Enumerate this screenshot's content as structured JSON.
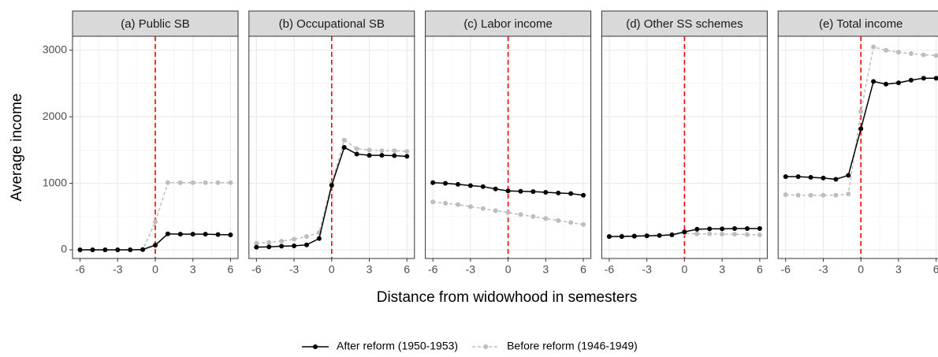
{
  "chart_data": {
    "type": "line",
    "x_label": "Distance from widowhood in semesters",
    "y_label": "Average income",
    "x": [
      -6,
      -5,
      -4,
      -3,
      -2,
      -1,
      0,
      1,
      2,
      3,
      4,
      5,
      6
    ],
    "xlim": [
      -6.6,
      6.6
    ],
    "xticks": [
      -6,
      -3,
      0,
      3,
      6
    ],
    "xminor": [
      -4.5,
      -1.5,
      1.5,
      4.5
    ],
    "ylim": [
      -130,
      3210
    ],
    "yticks": [
      0,
      1000,
      2000,
      3000
    ],
    "yminor": [
      500,
      1500,
      2500
    ],
    "grid": true,
    "reference_x": 0,
    "reference_color": "#ff0000",
    "legend": "bottom",
    "series": [
      {
        "name": "After reform (1950-1953)",
        "color": "#000000",
        "dashed": false
      },
      {
        "name": "Before reform (1946-1949)",
        "color": "#bdbdbd",
        "dashed": true
      }
    ],
    "panels": [
      {
        "title": "(a) Public SB",
        "values": [
          [
            0,
            0,
            0,
            0,
            0,
            5,
            70,
            240,
            235,
            235,
            235,
            230,
            225
          ],
          [
            0,
            0,
            0,
            0,
            0,
            0,
            420,
            1010,
            1010,
            1010,
            1010,
            1010,
            1010
          ]
        ]
      },
      {
        "title": "(b) Occupational SB",
        "values": [
          [
            40,
            45,
            55,
            60,
            75,
            170,
            970,
            1540,
            1440,
            1420,
            1420,
            1415,
            1405
          ],
          [
            100,
            110,
            130,
            160,
            200,
            260,
            1000,
            1650,
            1520,
            1500,
            1490,
            1490,
            1480
          ]
        ]
      },
      {
        "title": "(c) Labor income",
        "values": [
          [
            1010,
            1000,
            985,
            965,
            950,
            915,
            885,
            880,
            875,
            865,
            855,
            845,
            820
          ],
          [
            720,
            700,
            680,
            650,
            620,
            590,
            560,
            530,
            500,
            470,
            440,
            410,
            380
          ]
        ]
      },
      {
        "title": "(d) Other SS schemes",
        "values": [
          [
            200,
            200,
            205,
            210,
            215,
            225,
            270,
            310,
            315,
            315,
            320,
            320,
            320
          ],
          [
            200,
            210,
            215,
            215,
            220,
            230,
            250,
            240,
            240,
            235,
            235,
            230,
            225
          ]
        ]
      },
      {
        "title": "(e) Total income",
        "values": [
          [
            1100,
            1100,
            1090,
            1080,
            1060,
            1120,
            1820,
            2530,
            2490,
            2510,
            2550,
            2580,
            2580
          ],
          [
            830,
            820,
            820,
            820,
            820,
            840,
            2080,
            3050,
            3000,
            2970,
            2950,
            2930,
            2920
          ]
        ]
      }
    ]
  }
}
